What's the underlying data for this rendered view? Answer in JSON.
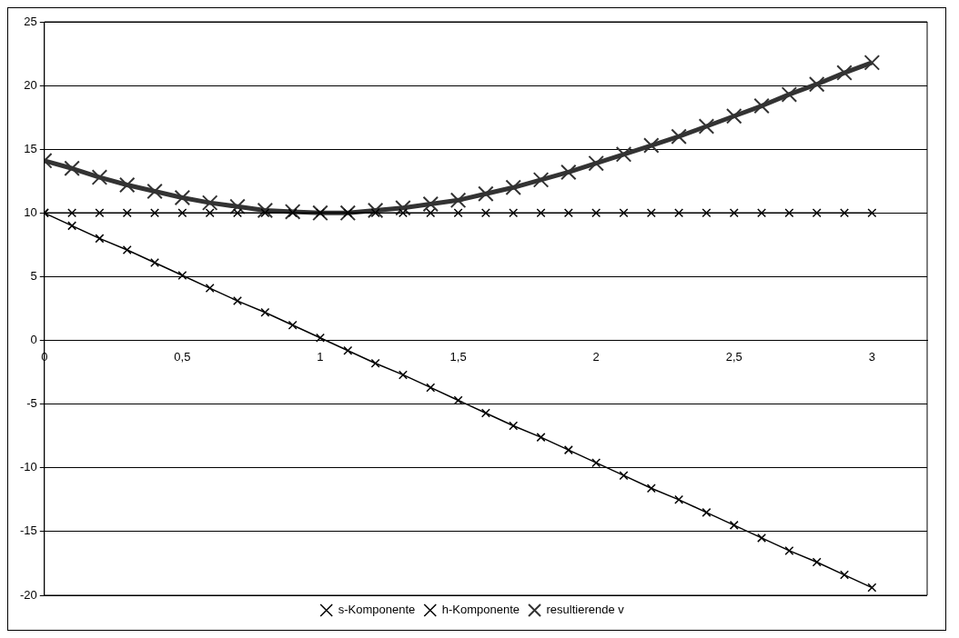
{
  "chart_data": {
    "type": "line",
    "x": [
      0,
      0.1,
      0.2,
      0.3,
      0.4,
      0.5,
      0.6,
      0.7,
      0.8,
      0.9,
      1,
      1.1,
      1.2,
      1.3,
      1.4,
      1.5,
      1.6,
      1.7,
      1.8,
      1.9,
      2,
      2.1,
      2.2,
      2.3,
      2.4,
      2.5,
      2.6,
      2.7,
      2.8,
      2.9,
      3
    ],
    "series": [
      {
        "name": "s-Komponente",
        "color": "#000000",
        "values": [
          10,
          9.0,
          8.0,
          7.1,
          6.1,
          5.1,
          4.1,
          3.1,
          2.2,
          1.2,
          0.2,
          -0.8,
          -1.8,
          -2.7,
          -3.7,
          -4.7,
          -5.7,
          -6.7,
          -7.6,
          -8.6,
          -9.6,
          -10.6,
          -11.6,
          -12.5,
          -13.5,
          -14.5,
          -15.5,
          -16.5,
          -17.4,
          -18.4,
          -19.4
        ]
      },
      {
        "name": "h-Komponente",
        "color": "#000000",
        "values": [
          10,
          10,
          10,
          10,
          10,
          10,
          10,
          10,
          10,
          10,
          10,
          10,
          10,
          10,
          10,
          10,
          10,
          10,
          10,
          10,
          10,
          10,
          10,
          10,
          10,
          10,
          10,
          10,
          10,
          10,
          10
        ]
      },
      {
        "name": "resultierende v",
        "color": "#333333",
        "values": [
          14.1,
          13.5,
          12.8,
          12.2,
          11.7,
          11.2,
          10.8,
          10.5,
          10.2,
          10.1,
          10.0,
          10.0,
          10.2,
          10.4,
          10.7,
          11.0,
          11.5,
          12.0,
          12.6,
          13.2,
          13.9,
          14.6,
          15.3,
          16.0,
          16.8,
          17.6,
          18.4,
          19.3,
          20.1,
          21.0,
          21.8
        ]
      }
    ],
    "xlim": [
      0,
      3.2
    ],
    "xticks": [
      0,
      {
        "value": 0.5,
        "label": "0,5"
      },
      1,
      {
        "value": 1.5,
        "label": "1,5"
      },
      2,
      {
        "value": 2.5,
        "label": "2,5"
      },
      3
    ],
    "ylim": [
      -20,
      25
    ],
    "yticks": [
      -20,
      -15,
      -10,
      -5,
      0,
      5,
      10,
      15,
      20,
      25
    ],
    "grid": "y",
    "legend": "bottom",
    "marker": "cross",
    "line_style": "solid"
  }
}
